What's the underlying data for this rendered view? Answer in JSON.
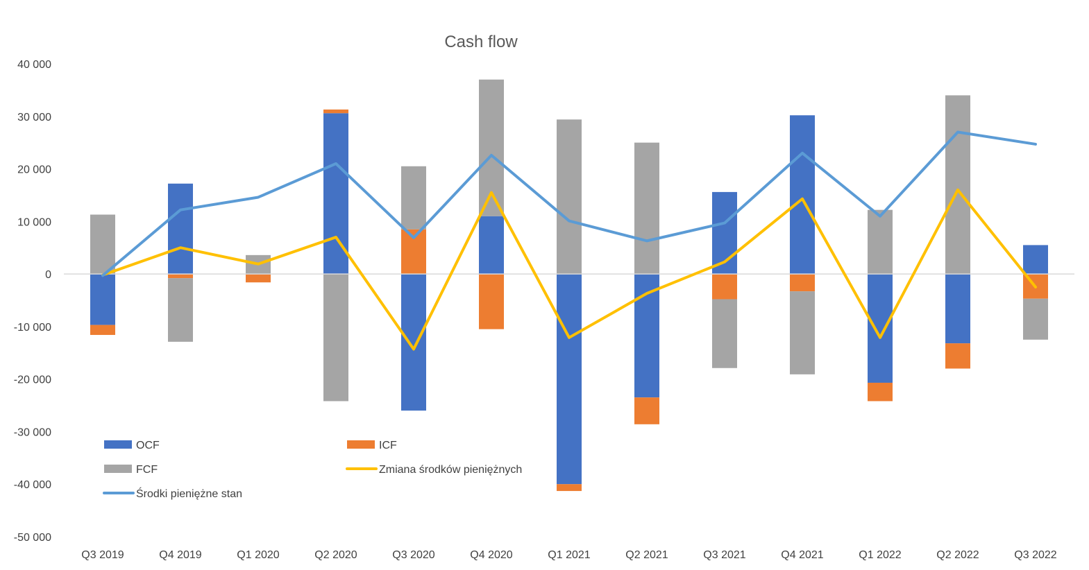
{
  "chart_data": {
    "type": "bar",
    "title": "Cash flow",
    "xlabel": "",
    "ylabel": "",
    "ylim": [
      -50000,
      40000
    ],
    "ytick_step": 10000,
    "ytick_labels": [
      "40 000",
      "30 000",
      "20 000",
      "10 000",
      "0",
      "-10 000",
      "-20 000",
      "-30 000",
      "-40 000",
      "-50 000"
    ],
    "grid": false,
    "legend_position": "bottom-left",
    "categories": [
      "Q3 2019",
      "Q4 2019",
      "Q1 2020",
      "Q2 2020",
      "Q3 2020",
      "Q4 2020",
      "Q1 2021",
      "Q2 2021",
      "Q3 2021",
      "Q4 2021",
      "Q1 2022",
      "Q2 2022",
      "Q3 2022"
    ],
    "series": [
      {
        "name": "OCF",
        "kind": "bar",
        "color": "#4472C4",
        "values": [
          -9700,
          17200,
          0,
          30600,
          -26000,
          11000,
          -40000,
          -23500,
          15600,
          30200,
          -20700,
          -13200,
          5500
        ]
      },
      {
        "name": "ICF",
        "kind": "bar",
        "color": "#ED7D31",
        "values": [
          -1900,
          -800,
          -1600,
          700,
          8500,
          -10500,
          -1300,
          -5100,
          -4800,
          -3300,
          -3500,
          -4800,
          -4700
        ]
      },
      {
        "name": "FCF",
        "kind": "bar",
        "color": "#A5A5A5",
        "values": [
          11300,
          -12100,
          3600,
          -24200,
          12000,
          26000,
          29400,
          25000,
          -13100,
          -15800,
          12200,
          34000,
          -7800
        ]
      },
      {
        "name": "Zmiana środków pieniężnych",
        "kind": "line",
        "color": "#FFC000",
        "values": [
          -200,
          5000,
          1900,
          7000,
          -14300,
          15500,
          -12100,
          -3700,
          2300,
          14300,
          -12100,
          16000,
          -2500
        ]
      },
      {
        "name": "Środki pieniężne stan",
        "kind": "line",
        "color": "#5B9BD5",
        "values": [
          -300,
          12200,
          14600,
          21000,
          6900,
          22600,
          10100,
          6300,
          9700,
          23000,
          11000,
          27000,
          24700
        ]
      }
    ]
  }
}
